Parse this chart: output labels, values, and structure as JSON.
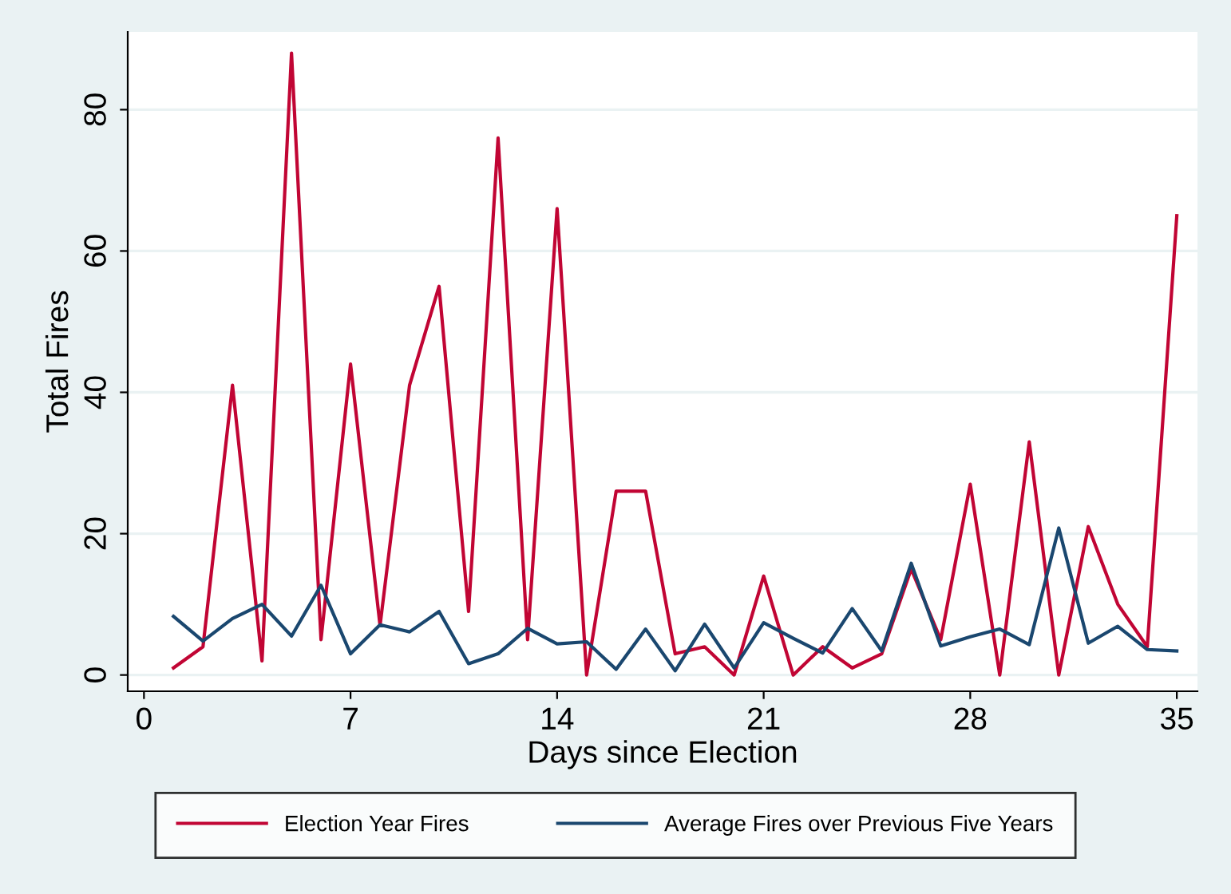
{
  "chart_data": {
    "type": "line",
    "xlabel": "Days since Election",
    "ylabel": "Total Fires",
    "x": [
      1,
      2,
      3,
      4,
      5,
      6,
      7,
      8,
      9,
      10,
      11,
      12,
      13,
      14,
      15,
      16,
      17,
      18,
      19,
      20,
      21,
      22,
      23,
      24,
      25,
      26,
      27,
      28,
      29,
      30,
      31,
      32,
      33,
      34,
      35
    ],
    "series": [
      {
        "name": "Election Year Fires",
        "color": "#c10534",
        "values": [
          1,
          4,
          41,
          2,
          88,
          5,
          44,
          7,
          41,
          55,
          9,
          76,
          5,
          66,
          0,
          26,
          26,
          3,
          4,
          0,
          14,
          0,
          4,
          1,
          3,
          15,
          5,
          27,
          0,
          33,
          0,
          21,
          10,
          4,
          65
        ]
      },
      {
        "name": "Average Fires over Previous Five Years",
        "color": "#1a476f",
        "values": [
          8.3,
          4.8,
          8,
          10,
          5.5,
          12.7,
          3,
          7.1,
          6.1,
          9,
          1.6,
          3,
          6.6,
          4.4,
          4.7,
          0.8,
          6.5,
          0.6,
          7.2,
          1,
          7.4,
          5.2,
          3.1,
          9.4,
          3.4,
          15.8,
          4.1,
          5.4,
          6.5,
          4.3,
          20.8,
          4.5,
          6.9,
          3.6,
          3.4
        ]
      }
    ],
    "xlim": [
      -0.55,
      35.7
    ],
    "ylim": [
      -2.3,
      91
    ],
    "xticks": [
      0,
      7,
      14,
      21,
      28,
      35
    ],
    "yticks": [
      0,
      20,
      40,
      60,
      80
    ],
    "grid": "y",
    "legend": "bottom",
    "marker": "none",
    "line_style": "solid"
  }
}
